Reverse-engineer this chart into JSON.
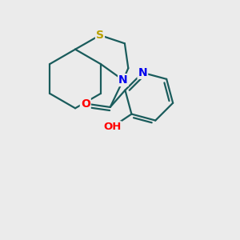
{
  "background_color": "#ebebeb",
  "atom_colors": {
    "S": "#b8a000",
    "N": "#0000ee",
    "O": "#ff0000",
    "C": "#1a5c5c"
  },
  "bond_color": "#1a5c5c",
  "bond_width": 1.6,
  "figsize": [
    3.0,
    3.0
  ],
  "dpi": 100,
  "xlim": [
    0,
    10
  ],
  "ylim": [
    0,
    10
  ]
}
